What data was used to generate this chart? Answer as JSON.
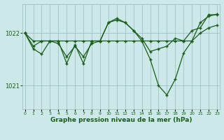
{
  "xlabel": "Graphe pression niveau de la mer (hPa)",
  "bg_color": "#cce8e8",
  "grid_color": "#99bbbb",
  "line_color": "#1a5c1a",
  "x": [
    0,
    1,
    2,
    3,
    4,
    5,
    6,
    7,
    8,
    9,
    10,
    11,
    12,
    13,
    14,
    15,
    16,
    17,
    18,
    19,
    20,
    21,
    22,
    23
  ],
  "series1": [
    1022.0,
    1021.75,
    1021.85,
    1021.85,
    1021.8,
    1021.55,
    1021.75,
    1021.55,
    1021.8,
    1021.85,
    1022.2,
    1022.25,
    1022.2,
    1022.05,
    1021.9,
    1021.65,
    1021.7,
    1021.75,
    1021.9,
    1021.85,
    1022.05,
    1022.1,
    1022.35,
    1022.35
  ],
  "series2": [
    1022.0,
    1021.85,
    1021.85,
    1021.85,
    1021.85,
    1021.85,
    1021.85,
    1021.85,
    1021.85,
    1021.85,
    1021.85,
    1021.85,
    1021.85,
    1021.85,
    1021.85,
    1021.85,
    1021.85,
    1021.85,
    1021.85,
    1021.85,
    1021.85,
    1022.0,
    1022.1,
    1022.15
  ],
  "series3": [
    1022.0,
    1021.7,
    1021.6,
    1021.85,
    1021.85,
    1021.42,
    1021.78,
    1021.42,
    1021.85,
    1021.85,
    1022.2,
    1022.28,
    1022.2,
    1022.05,
    1021.85,
    1021.5,
    1021.0,
    1020.82,
    1021.12,
    1021.62,
    1021.85,
    1022.2,
    1022.32,
    1022.36
  ],
  "yticks": [
    1021.0,
    1022.0
  ],
  "ylim": [
    1020.55,
    1022.55
  ],
  "xlim": [
    -0.3,
    23.3
  ]
}
